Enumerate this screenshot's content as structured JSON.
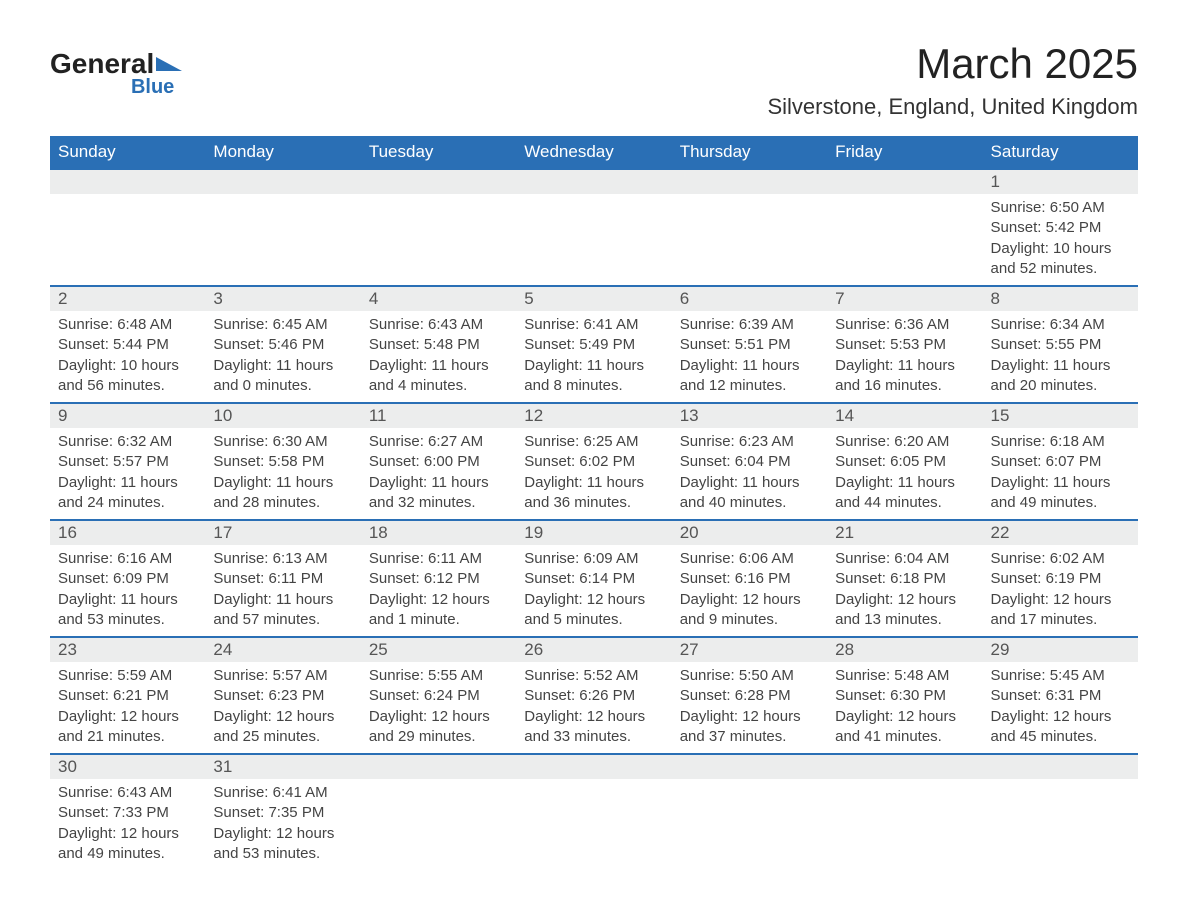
{
  "logo": {
    "text_main": "General",
    "text_sub": "Blue",
    "icon_color": "#2a6fb5"
  },
  "title": {
    "month": "March 2025",
    "location": "Silverstone, England, United Kingdom",
    "title_fontsize": 42,
    "location_fontsize": 22
  },
  "colors": {
    "header_bg": "#2a6fb5",
    "header_text": "#ffffff",
    "daynum_bg": "#eceded",
    "row_border": "#2a6fb5",
    "body_text": "#444444",
    "background": "#ffffff"
  },
  "day_headers": [
    "Sunday",
    "Monday",
    "Tuesday",
    "Wednesday",
    "Thursday",
    "Friday",
    "Saturday"
  ],
  "weeks": [
    [
      {
        "blank": true
      },
      {
        "blank": true
      },
      {
        "blank": true
      },
      {
        "blank": true
      },
      {
        "blank": true
      },
      {
        "blank": true
      },
      {
        "day": "1",
        "sunrise": "Sunrise: 6:50 AM",
        "sunset": "Sunset: 5:42 PM",
        "daylight": "Daylight: 10 hours and 52 minutes."
      }
    ],
    [
      {
        "day": "2",
        "sunrise": "Sunrise: 6:48 AM",
        "sunset": "Sunset: 5:44 PM",
        "daylight": "Daylight: 10 hours and 56 minutes."
      },
      {
        "day": "3",
        "sunrise": "Sunrise: 6:45 AM",
        "sunset": "Sunset: 5:46 PM",
        "daylight": "Daylight: 11 hours and 0 minutes."
      },
      {
        "day": "4",
        "sunrise": "Sunrise: 6:43 AM",
        "sunset": "Sunset: 5:48 PM",
        "daylight": "Daylight: 11 hours and 4 minutes."
      },
      {
        "day": "5",
        "sunrise": "Sunrise: 6:41 AM",
        "sunset": "Sunset: 5:49 PM",
        "daylight": "Daylight: 11 hours and 8 minutes."
      },
      {
        "day": "6",
        "sunrise": "Sunrise: 6:39 AM",
        "sunset": "Sunset: 5:51 PM",
        "daylight": "Daylight: 11 hours and 12 minutes."
      },
      {
        "day": "7",
        "sunrise": "Sunrise: 6:36 AM",
        "sunset": "Sunset: 5:53 PM",
        "daylight": "Daylight: 11 hours and 16 minutes."
      },
      {
        "day": "8",
        "sunrise": "Sunrise: 6:34 AM",
        "sunset": "Sunset: 5:55 PM",
        "daylight": "Daylight: 11 hours and 20 minutes."
      }
    ],
    [
      {
        "day": "9",
        "sunrise": "Sunrise: 6:32 AM",
        "sunset": "Sunset: 5:57 PM",
        "daylight": "Daylight: 11 hours and 24 minutes."
      },
      {
        "day": "10",
        "sunrise": "Sunrise: 6:30 AM",
        "sunset": "Sunset: 5:58 PM",
        "daylight": "Daylight: 11 hours and 28 minutes."
      },
      {
        "day": "11",
        "sunrise": "Sunrise: 6:27 AM",
        "sunset": "Sunset: 6:00 PM",
        "daylight": "Daylight: 11 hours and 32 minutes."
      },
      {
        "day": "12",
        "sunrise": "Sunrise: 6:25 AM",
        "sunset": "Sunset: 6:02 PM",
        "daylight": "Daylight: 11 hours and 36 minutes."
      },
      {
        "day": "13",
        "sunrise": "Sunrise: 6:23 AM",
        "sunset": "Sunset: 6:04 PM",
        "daylight": "Daylight: 11 hours and 40 minutes."
      },
      {
        "day": "14",
        "sunrise": "Sunrise: 6:20 AM",
        "sunset": "Sunset: 6:05 PM",
        "daylight": "Daylight: 11 hours and 44 minutes."
      },
      {
        "day": "15",
        "sunrise": "Sunrise: 6:18 AM",
        "sunset": "Sunset: 6:07 PM",
        "daylight": "Daylight: 11 hours and 49 minutes."
      }
    ],
    [
      {
        "day": "16",
        "sunrise": "Sunrise: 6:16 AM",
        "sunset": "Sunset: 6:09 PM",
        "daylight": "Daylight: 11 hours and 53 minutes."
      },
      {
        "day": "17",
        "sunrise": "Sunrise: 6:13 AM",
        "sunset": "Sunset: 6:11 PM",
        "daylight": "Daylight: 11 hours and 57 minutes."
      },
      {
        "day": "18",
        "sunrise": "Sunrise: 6:11 AM",
        "sunset": "Sunset: 6:12 PM",
        "daylight": "Daylight: 12 hours and 1 minute."
      },
      {
        "day": "19",
        "sunrise": "Sunrise: 6:09 AM",
        "sunset": "Sunset: 6:14 PM",
        "daylight": "Daylight: 12 hours and 5 minutes."
      },
      {
        "day": "20",
        "sunrise": "Sunrise: 6:06 AM",
        "sunset": "Sunset: 6:16 PM",
        "daylight": "Daylight: 12 hours and 9 minutes."
      },
      {
        "day": "21",
        "sunrise": "Sunrise: 6:04 AM",
        "sunset": "Sunset: 6:18 PM",
        "daylight": "Daylight: 12 hours and 13 minutes."
      },
      {
        "day": "22",
        "sunrise": "Sunrise: 6:02 AM",
        "sunset": "Sunset: 6:19 PM",
        "daylight": "Daylight: 12 hours and 17 minutes."
      }
    ],
    [
      {
        "day": "23",
        "sunrise": "Sunrise: 5:59 AM",
        "sunset": "Sunset: 6:21 PM",
        "daylight": "Daylight: 12 hours and 21 minutes."
      },
      {
        "day": "24",
        "sunrise": "Sunrise: 5:57 AM",
        "sunset": "Sunset: 6:23 PM",
        "daylight": "Daylight: 12 hours and 25 minutes."
      },
      {
        "day": "25",
        "sunrise": "Sunrise: 5:55 AM",
        "sunset": "Sunset: 6:24 PM",
        "daylight": "Daylight: 12 hours and 29 minutes."
      },
      {
        "day": "26",
        "sunrise": "Sunrise: 5:52 AM",
        "sunset": "Sunset: 6:26 PM",
        "daylight": "Daylight: 12 hours and 33 minutes."
      },
      {
        "day": "27",
        "sunrise": "Sunrise: 5:50 AM",
        "sunset": "Sunset: 6:28 PM",
        "daylight": "Daylight: 12 hours and 37 minutes."
      },
      {
        "day": "28",
        "sunrise": "Sunrise: 5:48 AM",
        "sunset": "Sunset: 6:30 PM",
        "daylight": "Daylight: 12 hours and 41 minutes."
      },
      {
        "day": "29",
        "sunrise": "Sunrise: 5:45 AM",
        "sunset": "Sunset: 6:31 PM",
        "daylight": "Daylight: 12 hours and 45 minutes."
      }
    ],
    [
      {
        "day": "30",
        "sunrise": "Sunrise: 6:43 AM",
        "sunset": "Sunset: 7:33 PM",
        "daylight": "Daylight: 12 hours and 49 minutes."
      },
      {
        "day": "31",
        "sunrise": "Sunrise: 6:41 AM",
        "sunset": "Sunset: 7:35 PM",
        "daylight": "Daylight: 12 hours and 53 minutes."
      },
      {
        "blank": true
      },
      {
        "blank": true
      },
      {
        "blank": true
      },
      {
        "blank": true
      },
      {
        "blank": true
      }
    ]
  ]
}
